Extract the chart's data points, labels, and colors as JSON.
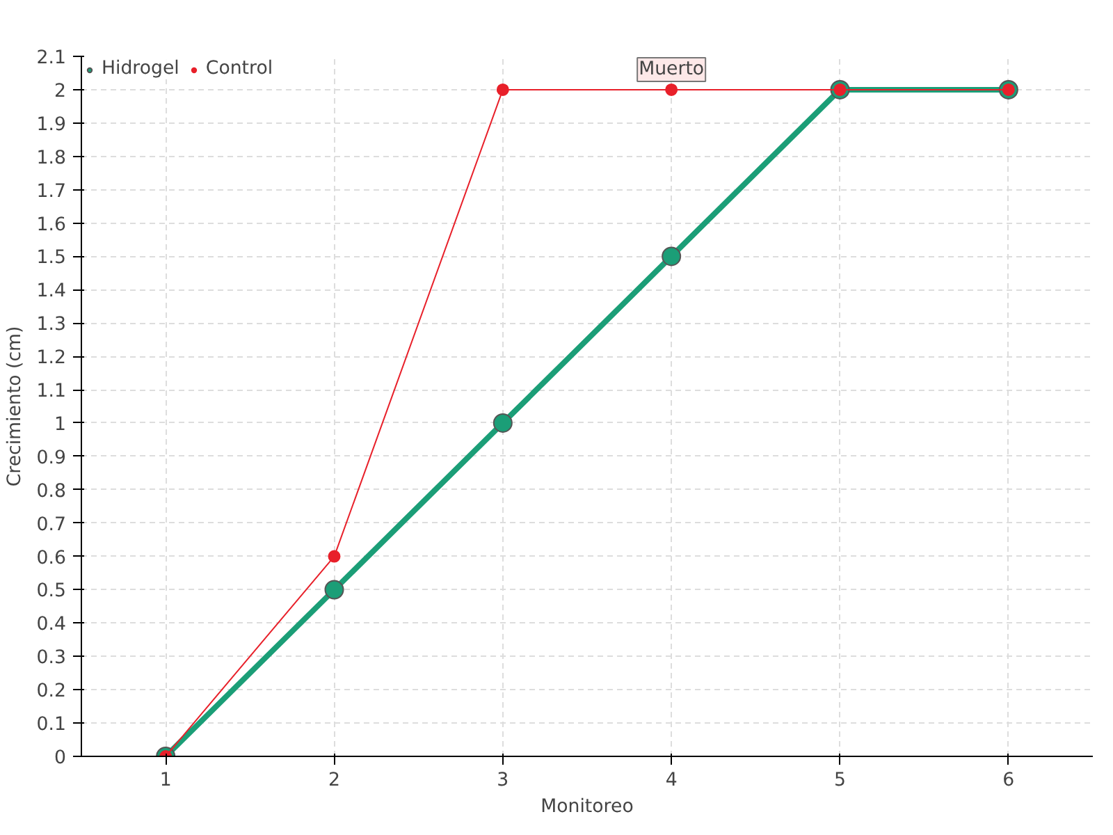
{
  "chart_data": {
    "type": "line",
    "xlabel": "Monitoreo",
    "ylabel": "Crecimiento (cm)",
    "x": [
      1,
      2,
      3,
      4,
      5,
      6
    ],
    "series": [
      {
        "name": "Hidrogel",
        "color": "#1b9e77",
        "values": [
          0,
          0.5,
          1,
          1.5,
          2,
          2
        ]
      },
      {
        "name": "Control",
        "color": "#e8202a",
        "values": [
          0,
          0.6,
          2,
          2,
          2,
          2
        ]
      }
    ],
    "xlim": [
      0.5,
      6.5
    ],
    "xticks": [
      1,
      2,
      3,
      4,
      5,
      6
    ],
    "ylim": [
      0,
      2.1
    ],
    "yticks": [
      0,
      0.1,
      0.2,
      0.3,
      0.4,
      0.5,
      0.6,
      0.7,
      0.8,
      0.9,
      1,
      1.1,
      1.2,
      1.3,
      1.4,
      1.5,
      1.6,
      1.7,
      1.8,
      1.9,
      2,
      2.1
    ],
    "annotations": [
      {
        "text": "Muerto",
        "x": 4,
        "y": 2
      }
    ],
    "grid": true,
    "legend": "top left",
    "marker": "circle",
    "line_style": "solid"
  }
}
